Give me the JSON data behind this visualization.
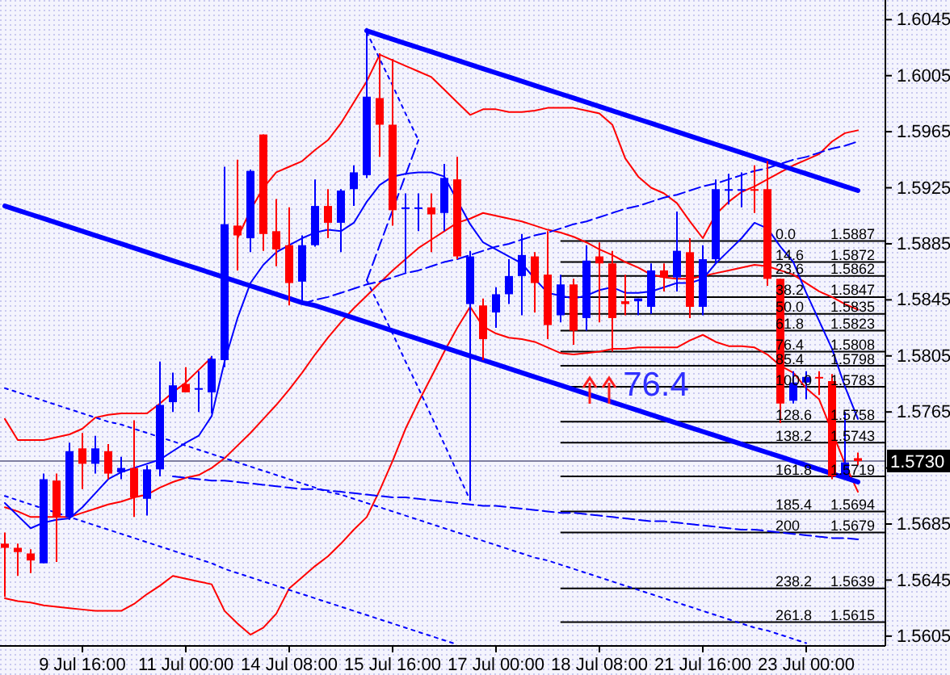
{
  "chart_data": {
    "type": "candlestick",
    "categories": [
      null,
      null,
      null,
      null,
      null,
      null,
      "9 Jul 16:00",
      null,
      null,
      null,
      null,
      null,
      null,
      null,
      "11 Jul 00:00",
      null,
      null,
      null,
      null,
      null,
      null,
      null,
      "14 Jul 08:00",
      null,
      null,
      null,
      null,
      null,
      null,
      null,
      "15 Jul 16:00",
      null,
      null,
      null,
      null,
      null,
      null,
      null,
      "17 Jul 00:00",
      null,
      null,
      null,
      null,
      null,
      null,
      null,
      "18 Jul 08:00",
      null,
      null,
      null,
      null,
      null,
      null,
      null,
      "21 Jul 16:00",
      null,
      null,
      null,
      null,
      null,
      null,
      null,
      "23 Jul 00:00",
      null,
      null,
      null,
      null
    ],
    "ohlc": [
      [
        1.5671,
        1.5679,
        1.5633,
        1.5668
      ],
      [
        1.5668,
        1.5671,
        1.5648,
        1.5665
      ],
      [
        1.5664,
        1.5667,
        1.565,
        1.5659
      ],
      [
        1.5657,
        1.5721,
        1.5657,
        1.5717
      ],
      [
        1.5716,
        1.5721,
        1.5658,
        1.569
      ],
      [
        1.569,
        1.5743,
        1.5688,
        1.5737
      ],
      [
        1.5739,
        1.575,
        1.571,
        1.5728
      ],
      [
        1.5728,
        1.5748,
        1.5721,
        1.5739
      ],
      [
        1.5737,
        1.5742,
        1.5717,
        1.5721
      ],
      [
        1.5722,
        1.5733,
        1.5717,
        1.5725
      ],
      [
        1.5725,
        1.5759,
        1.569,
        1.5704
      ],
      [
        1.5703,
        1.5727,
        1.5691,
        1.5724
      ],
      [
        1.5724,
        1.5801,
        1.5719,
        1.577
      ],
      [
        1.5772,
        1.5793,
        1.5765,
        1.5784
      ],
      [
        1.5785,
        1.5797,
        1.5779,
        1.5779
      ],
      [
        1.5781,
        1.5794,
        1.5765,
        1.5782
      ],
      [
        1.5779,
        1.5805,
        1.5764,
        1.5803
      ],
      [
        1.5802,
        1.594,
        1.5797,
        1.5899
      ],
      [
        1.5898,
        1.5945,
        1.5866,
        1.5891
      ],
      [
        1.5889,
        1.5938,
        1.5879,
        1.5937
      ],
      [
        1.5963,
        1.5963,
        1.588,
        1.5892
      ],
      [
        1.5894,
        1.5917,
        1.5869,
        1.5881
      ],
      [
        1.5884,
        1.5911,
        1.5841,
        1.5857
      ],
      [
        1.5858,
        1.5891,
        1.5843,
        1.5884
      ],
      [
        1.5884,
        1.5931,
        1.5883,
        1.5912
      ],
      [
        1.5912,
        1.5924,
        1.5889,
        1.59
      ],
      [
        1.59,
        1.5924,
        1.5879,
        1.5923
      ],
      [
        1.5924,
        1.5941,
        1.5912,
        1.5936
      ],
      [
        1.5934,
        1.6039,
        1.5932,
        1.599
      ],
      [
        1.5989,
        1.6021,
        1.5947,
        1.597
      ],
      [
        1.597,
        1.6017,
        1.5898,
        1.5909
      ],
      [
        1.591,
        1.5921,
        1.5864,
        1.5911
      ],
      [
        1.591,
        1.5921,
        1.5894,
        1.5911
      ],
      [
        1.5911,
        1.5921,
        1.5879,
        1.5906
      ],
      [
        1.5907,
        1.5942,
        1.5894,
        1.5932
      ],
      [
        1.5931,
        1.5947,
        1.5874,
        1.5876
      ],
      [
        1.5842,
        1.588,
        1.5702,
        1.5876
      ],
      [
        1.5841,
        1.5846,
        1.5802,
        1.5817
      ],
      [
        1.5836,
        1.5854,
        1.5825,
        1.5849
      ],
      [
        1.5849,
        1.5874,
        1.5842,
        1.5862
      ],
      [
        1.5862,
        1.5892,
        1.5834,
        1.5877
      ],
      [
        1.5876,
        1.5879,
        1.5836,
        1.5857
      ],
      [
        1.5863,
        1.5894,
        1.5817,
        1.5827
      ],
      [
        1.5834,
        1.5863,
        1.5829,
        1.5856
      ],
      [
        1.5856,
        1.586,
        1.5813,
        1.5823
      ],
      [
        1.5832,
        1.5884,
        1.5823,
        1.5873
      ],
      [
        1.5876,
        1.5886,
        1.5829,
        1.5871
      ],
      [
        1.5871,
        1.588,
        1.5808,
        1.5832
      ],
      [
        1.5844,
        1.5863,
        1.5834,
        1.5842
      ],
      [
        1.5844,
        1.5846,
        1.5834,
        1.5846
      ],
      [
        1.584,
        1.5871,
        1.5835,
        1.5866
      ],
      [
        1.5866,
        1.5871,
        1.5851,
        1.5861
      ],
      [
        1.5861,
        1.5908,
        1.5851,
        1.588
      ],
      [
        1.5879,
        1.5889,
        1.5832,
        1.584
      ],
      [
        1.584,
        1.5884,
        1.5834,
        1.5874
      ],
      [
        1.5874,
        1.5931,
        1.5871,
        1.5924
      ],
      [
        1.5923,
        1.5935,
        1.5913,
        1.5924
      ],
      [
        1.5923,
        1.5936,
        1.5911,
        1.5924
      ],
      [
        1.5924,
        1.5941,
        1.5907,
        1.5923
      ],
      [
        1.5924,
        1.5944,
        1.5855,
        1.586
      ],
      [
        1.586,
        1.586,
        1.5757,
        1.5771
      ],
      [
        1.5773,
        1.5794,
        1.5771,
        1.5786
      ],
      [
        1.5786,
        1.5794,
        1.5774,
        1.579
      ],
      [
        1.579,
        1.5794,
        1.5777,
        1.5789
      ],
      [
        1.5787,
        1.5792,
        1.5717,
        1.5719
      ],
      [
        1.5719,
        1.5765,
        1.5717,
        1.5729
      ],
      [
        1.5732,
        1.5736,
        1.5727,
        1.573
      ]
    ],
    "colors": [
      "#ff0000",
      "#ff0000",
      "#ff0000",
      "#0000ff",
      "#ff0000",
      "#0000ff",
      "#ff0000",
      "#0000ff",
      "#ff0000",
      "#0000ff",
      "#ff0000",
      "#0000ff",
      "#0000ff",
      "#0000ff",
      "#ff0000",
      "#0000ff",
      "#0000ff",
      "#0000ff",
      "#ff0000",
      "#0000ff",
      "#ff0000",
      "#ff0000",
      "#ff0000",
      "#0000ff",
      "#0000ff",
      "#ff0000",
      "#0000ff",
      "#0000ff",
      "#0000ff",
      "#ff0000",
      "#ff0000",
      "#0000ff",
      "#0000ff",
      "#ff0000",
      "#0000ff",
      "#ff0000",
      "#0000ff",
      "#ff0000",
      "#0000ff",
      "#0000ff",
      "#0000ff",
      "#ff0000",
      "#ff0000",
      "#0000ff",
      "#ff0000",
      "#0000ff",
      "#ff0000",
      "#ff0000",
      "#ff0000",
      "#0000ff",
      "#0000ff",
      "#ff0000",
      "#0000ff",
      "#ff0000",
      "#0000ff",
      "#0000ff",
      "#0000ff",
      "#0000ff",
      "#ff0000",
      "#ff0000",
      "#ff0000",
      "#0000ff",
      "#0000ff",
      "#ff0000",
      "#ff0000",
      "#0000ff",
      "#ff0000"
    ],
    "series": [
      {
        "type": "line",
        "color": "#ff0000",
        "line_style": "solid",
        "values": [
          1.576,
          1.5745,
          1.5745,
          1.5745,
          1.5747,
          1.5749,
          1.5753,
          1.5761,
          1.5763,
          1.5764,
          1.5764,
          1.5764,
          1.5771,
          1.5779,
          1.5786,
          1.5795,
          1.5804,
          null,
          1.5889,
          1.5909,
          1.5925,
          1.5936,
          1.594,
          1.5944,
          1.5952,
          1.5959,
          1.5971,
          1.5986,
          1.6001,
          1.602,
          1.6016,
          1.6012,
          1.6008,
          1.6004,
          1.5995,
          1.5986,
          1.5977,
          1.5981,
          1.5981,
          1.5979,
          1.5979,
          1.598,
          1.5982,
          1.5982,
          1.5982,
          1.598,
          1.5978,
          1.597,
          1.5946,
          1.5933,
          1.5925,
          1.5921,
          1.5914,
          1.5901,
          1.5889,
          1.5906,
          1.5915,
          1.5922,
          1.5926,
          1.5931,
          1.5936,
          1.5941,
          1.5945,
          1.5949,
          1.5958,
          1.5964,
          1.5966
        ]
      },
      {
        "type": "line",
        "color": "#ff0000",
        "line_style": "solid",
        "values": [
          1.5697,
          1.5694,
          1.569,
          1.569,
          1.569,
          1.569,
          1.5693,
          1.5696,
          1.5699,
          1.5701,
          1.5704,
          1.5706,
          1.5711,
          1.5715,
          1.5718,
          1.572,
          1.5725,
          1.5732,
          1.5741,
          1.575,
          1.576,
          1.577,
          1.5781,
          1.5793,
          1.5806,
          1.5818,
          1.5829,
          1.5839,
          1.5848,
          1.5857,
          1.5866,
          1.5874,
          1.5882,
          1.5888,
          1.5894,
          1.59,
          1.5903,
          1.5907,
          1.5905,
          1.5903,
          1.5901,
          1.5898,
          1.5895,
          1.5893,
          1.589,
          1.5886,
          1.5881,
          1.5877,
          1.5872,
          1.5868,
          1.5863,
          1.5861,
          1.586,
          1.586,
          1.5862,
          1.5864,
          1.5866,
          1.5868,
          1.587,
          1.5869,
          1.5866,
          1.5863,
          1.5857,
          1.5851,
          1.5847,
          1.5842,
          1.5838
        ]
      },
      {
        "type": "line",
        "color": "#ff0000",
        "line_style": "solid",
        "values": [
          1.5632,
          1.563,
          1.5629,
          1.5627,
          1.5626,
          1.5625,
          1.5624,
          1.5623,
          1.5623,
          1.5623,
          1.5628,
          1.5635,
          1.5641,
          1.5648,
          1.5646,
          1.5644,
          1.5642,
          1.5623,
          1.5614,
          1.5606,
          1.5611,
          1.5621,
          1.5639,
          1.5647,
          1.5655,
          1.5662,
          1.5671,
          1.5681,
          1.569,
          1.5709,
          1.573,
          1.5753,
          1.5772,
          1.579,
          1.5808,
          1.5825,
          1.584,
          1.5826,
          1.5821,
          1.5818,
          1.5817,
          1.5815,
          1.5811,
          1.5807,
          1.5806,
          1.5807,
          1.5808,
          1.581,
          1.581,
          1.5811,
          1.5811,
          1.5811,
          1.5811,
          1.5816,
          1.582,
          1.5815,
          1.5812,
          1.5812,
          1.5811,
          1.5806,
          1.5798,
          1.5793,
          1.5782,
          1.5774,
          1.5751,
          1.5728,
          1.5708
        ]
      },
      {
        "type": "line",
        "color": "#0000ff",
        "line_style": "solid",
        "values": [
          1.57,
          1.5691,
          1.5682,
          1.5686,
          1.5688,
          1.5689,
          1.5697,
          1.5707,
          1.5717,
          1.5722,
          1.5725,
          1.5728,
          1.5731,
          1.5737,
          1.5743,
          1.5748,
          1.5762,
          1.5801,
          1.5832,
          1.5857,
          1.587,
          1.5879,
          1.5884,
          1.5889,
          1.5893,
          1.5895,
          1.5894,
          1.59,
          1.5915,
          1.5927,
          1.5933,
          1.5935,
          1.5936,
          1.5936,
          1.5933,
          1.5916,
          1.5899,
          1.5886,
          1.5881,
          1.5876,
          1.5871,
          1.586,
          1.585,
          1.5848,
          1.5846,
          1.5848,
          1.5852,
          1.5854,
          1.585,
          1.585,
          1.5851,
          1.5854,
          1.5857,
          1.5857,
          1.586,
          1.5871,
          1.588,
          1.5889,
          1.59,
          1.5896,
          1.5883,
          1.5872,
          1.585,
          1.583,
          1.581,
          1.5783,
          1.576
        ]
      },
      {
        "type": "line",
        "color": "#0000ff",
        "line_style": "solid",
        "values": [
          null,
          null,
          null,
          null,
          null,
          null,
          null,
          null,
          null,
          null,
          null,
          null,
          null,
          null,
          null,
          null,
          null,
          null,
          null,
          null,
          null,
          null,
          null,
          null,
          null,
          null,
          null,
          null,
          1.6037,
          1.6034,
          1.6031,
          1.6028,
          1.6025,
          1.6022,
          1.6019,
          1.6016,
          1.6013,
          1.601,
          1.6007,
          1.6004,
          1.6001,
          1.5998,
          1.5995,
          1.5992,
          1.5989,
          1.5986,
          1.5983,
          1.598,
          1.5977,
          1.5974,
          1.5971,
          1.5968,
          1.5965,
          1.5962,
          1.5959,
          1.5956,
          1.5953,
          1.595,
          1.5947,
          1.5944,
          1.5941,
          1.5938,
          1.5935,
          1.5932,
          1.5929,
          1.5926,
          1.5923
        ]
      },
      {
        "type": "line",
        "color": "#0000ff",
        "line_style": "solid",
        "values": [
          1.5912,
          1.5909,
          1.5906,
          1.5903,
          1.59,
          1.5897,
          1.5894,
          1.5891,
          1.5888,
          1.5885,
          1.5882,
          1.5879,
          1.5876,
          1.5873,
          1.587,
          1.5867,
          1.5864,
          1.5861,
          1.5858,
          1.5855,
          1.5852,
          1.5849,
          1.5846,
          1.5843,
          1.5841,
          1.5838,
          1.5835,
          1.5832,
          1.5829,
          1.5826,
          1.5823,
          1.582,
          1.5817,
          1.5814,
          1.5811,
          1.5808,
          1.5805,
          1.5802,
          1.5799,
          1.5796,
          1.5793,
          1.579,
          1.5787,
          1.5784,
          1.5781,
          1.5778,
          1.5775,
          1.5772,
          1.5769,
          1.5766,
          1.5763,
          1.576,
          1.5757,
          1.5754,
          1.5751,
          1.5748,
          1.5745,
          1.5742,
          1.5739,
          1.5736,
          1.5733,
          1.573,
          1.5727,
          1.5724,
          1.5721,
          1.5718,
          1.5715
        ]
      },
      {
        "type": "line",
        "color": "#0000ff",
        "line_style": "dashed",
        "values": [
          null,
          null,
          null,
          null,
          null,
          null,
          null,
          null,
          null,
          null,
          null,
          null,
          null,
          null,
          null,
          null,
          null,
          null,
          null,
          null,
          null,
          null,
          null,
          1.5842,
          1.5845,
          1.5847,
          1.585,
          1.5853,
          1.5856,
          1.5858,
          1.5861,
          1.5864,
          1.5866,
          1.5869,
          1.5872,
          1.5874,
          1.5877,
          1.588,
          1.5883,
          1.5885,
          1.5888,
          1.5891,
          1.5893,
          1.5896,
          1.5899,
          1.5901,
          1.5904,
          1.5907,
          1.591,
          1.5912,
          1.5915,
          1.5918,
          1.592,
          1.5923,
          1.5926,
          1.5928,
          1.5931,
          1.5934,
          1.5937,
          1.5939,
          1.5942,
          1.5945,
          1.5947,
          1.595,
          1.5953,
          1.5955,
          1.5958
        ]
      },
      {
        "type": "line",
        "color": "#0000ff",
        "line_style": "dashed",
        "values": [
          null,
          null,
          null,
          null,
          null,
          null,
          null,
          null,
          null,
          null,
          null,
          null,
          null,
          1.5719,
          1.5718,
          1.5717,
          1.5716,
          1.5716,
          1.5715,
          1.5714,
          1.5713,
          1.5712,
          1.5711,
          1.571,
          1.571,
          1.5709,
          1.5708,
          1.5707,
          1.5706,
          1.5705,
          1.5704,
          1.5704,
          1.5703,
          1.5702,
          1.5701,
          1.57,
          1.5699,
          1.5698,
          1.5698,
          1.5697,
          1.5696,
          1.5695,
          1.5694,
          1.5693,
          1.5693,
          1.5692,
          1.5691,
          1.569,
          1.5689,
          1.5688,
          1.5687,
          1.5687,
          1.5686,
          1.5685,
          1.5684,
          1.5683,
          1.5682,
          1.5681,
          1.5681,
          1.568,
          1.5679,
          1.5678,
          1.5677,
          1.5676,
          1.5675,
          1.5675,
          1.5674
        ]
      },
      {
        "type": "line",
        "color": "#0000ff",
        "line_style": "dotted",
        "values": [
          1.5782,
          1.5779,
          1.5776,
          1.5773,
          1.577,
          1.5767,
          1.5764,
          1.5761,
          1.5758,
          1.5756,
          1.5753,
          1.575,
          1.5747,
          1.5744,
          1.5741,
          1.5738,
          1.5735,
          1.5732,
          1.5729,
          1.5726,
          1.5723,
          1.572,
          1.5717,
          1.5714,
          1.5711,
          1.5708,
          1.5706,
          1.5703,
          1.57,
          1.5697,
          1.5694,
          1.5691,
          1.5688,
          1.5685,
          1.5682,
          1.5679,
          1.5676,
          1.5673,
          1.567,
          1.5667,
          1.5664,
          1.5661,
          1.5659,
          1.5656,
          1.5653,
          1.565,
          1.5647,
          1.5644,
          1.5641,
          1.5638,
          1.5635,
          1.5632,
          1.5629,
          1.5626,
          1.5623,
          1.562,
          1.5617,
          1.5614,
          1.5611,
          1.5609,
          1.5606,
          1.5603,
          1.56,
          null,
          null,
          null,
          null
        ]
      },
      {
        "type": "line",
        "color": "#0000ff",
        "line_style": "dotted",
        "values": [
          1.5705,
          1.5702,
          1.5699,
          1.5696,
          1.5693,
          1.569,
          1.5687,
          1.5684,
          1.5681,
          1.5678,
          1.5675,
          1.5672,
          1.5669,
          1.5666,
          1.5663,
          1.566,
          1.5657,
          1.5653,
          1.565,
          1.5647,
          1.5644,
          1.5641,
          1.5638,
          1.5635,
          1.5632,
          1.5629,
          1.5626,
          1.5623,
          1.562,
          1.5617,
          1.5614,
          1.5611,
          1.5608,
          1.5605,
          1.5602,
          1.5599,
          null,
          null,
          null,
          null,
          null,
          null,
          null,
          null,
          null,
          null,
          null,
          null,
          null,
          null,
          null,
          null,
          null,
          null,
          null,
          null,
          null,
          null,
          null,
          null,
          null,
          null,
          null,
          null,
          null,
          null,
          null
        ]
      },
      {
        "type": "line",
        "color": "#0000ff",
        "line_style": "dotted",
        "values": [
          null,
          null,
          null,
          null,
          null,
          null,
          null,
          null,
          null,
          null,
          null,
          null,
          null,
          null,
          null,
          null,
          null,
          null,
          null,
          null,
          null,
          null,
          null,
          null,
          null,
          null,
          null,
          null,
          1.6036,
          1.6017,
          1.5998,
          1.5978,
          1.5959,
          null,
          null,
          null,
          null,
          null,
          null,
          null,
          null,
          null,
          null,
          null,
          null,
          null,
          null,
          null,
          null,
          null,
          null,
          null,
          null,
          null,
          null,
          null,
          null,
          null,
          null,
          null,
          null,
          null,
          null,
          null,
          null,
          null,
          null
        ]
      },
      {
        "type": "line",
        "color": "#0000ff",
        "line_style": "dashed",
        "values": [
          null,
          null,
          null,
          null,
          null,
          null,
          null,
          null,
          null,
          null,
          null,
          null,
          null,
          null,
          null,
          null,
          null,
          null,
          null,
          null,
          null,
          null,
          null,
          null,
          null,
          null,
          null,
          null,
          1.5859,
          1.5884,
          1.5909,
          1.5934,
          1.5959,
          null,
          null,
          null,
          null,
          null,
          null,
          null,
          null,
          null,
          null,
          null,
          null,
          null,
          null,
          null,
          null,
          null,
          null,
          null,
          null,
          null,
          null,
          null,
          null,
          null,
          null,
          null,
          null,
          null,
          null,
          null,
          null,
          null,
          null
        ]
      },
      {
        "type": "line",
        "color": "#0000ff",
        "line_style": "dotted",
        "values": [
          null,
          null,
          null,
          null,
          null,
          null,
          null,
          null,
          null,
          null,
          null,
          null,
          null,
          null,
          null,
          null,
          null,
          null,
          null,
          null,
          null,
          null,
          null,
          null,
          null,
          null,
          null,
          null,
          1.5859,
          1.584,
          1.5821,
          1.5801,
          1.5782,
          1.5762,
          1.5742,
          1.5722,
          1.5702,
          null,
          null,
          null,
          null,
          null,
          null,
          null,
          null,
          null,
          null,
          null,
          null,
          null,
          null,
          null,
          null,
          null,
          null,
          null,
          null,
          null,
          null,
          null,
          null,
          null,
          null,
          null,
          null,
          null,
          null
        ]
      }
    ],
    "ylim": [
      1.5598,
      1.6059
    ],
    "yticks": [
      1.6045,
      1.6005,
      1.5965,
      1.5925,
      1.5885,
      1.5845,
      1.5805,
      1.5765,
      {
        "value": 1.5725,
        "label": null
      },
      1.5685,
      1.5645,
      1.5605
    ],
    "ref_lines": [
      {
        "axis": "y",
        "value": 1.573,
        "label": "1.5730",
        "color": "#8080a0"
      },
      {
        "axis": "y",
        "value": 1.5887,
        "label": "0.0 1.5887"
      },
      {
        "axis": "y",
        "value": 1.5872,
        "label": "14.6 1.5872"
      },
      {
        "axis": "y",
        "value": 1.5862,
        "label": "23.6 1.5862"
      },
      {
        "axis": "y",
        "value": 1.5847,
        "label": "38.2 1.5847"
      },
      {
        "axis": "y",
        "value": 1.5835,
        "label": "50.0 1.5835"
      },
      {
        "axis": "y",
        "value": 1.5823,
        "label": "61.8 1.5823"
      },
      {
        "axis": "y",
        "value": 1.5808,
        "label": "76.4 1.5808"
      },
      {
        "axis": "y",
        "value": 1.5798,
        "label": "85.4 1.5798"
      },
      {
        "axis": "y",
        "value": 1.5783,
        "label": "100.0 1.5783"
      },
      {
        "axis": "y",
        "value": 1.5758,
        "label": "128.6 1.5758"
      },
      {
        "axis": "y",
        "value": 1.5743,
        "label": "138.2 1.5743"
      },
      {
        "axis": "y",
        "value": 1.5719,
        "label": "161.8 1.5719"
      },
      {
        "axis": "y",
        "value": 1.5694,
        "label": "185.4 1.5694"
      },
      {
        "axis": "y",
        "value": 1.5679,
        "label": "200 1.5679"
      },
      {
        "axis": "y",
        "value": 1.5639,
        "label": "238.2 1.5639"
      },
      {
        "axis": "y",
        "value": 1.5615,
        "label": "261.8 1.5615"
      }
    ],
    "annotations": [
      "76.4"
    ]
  }
}
